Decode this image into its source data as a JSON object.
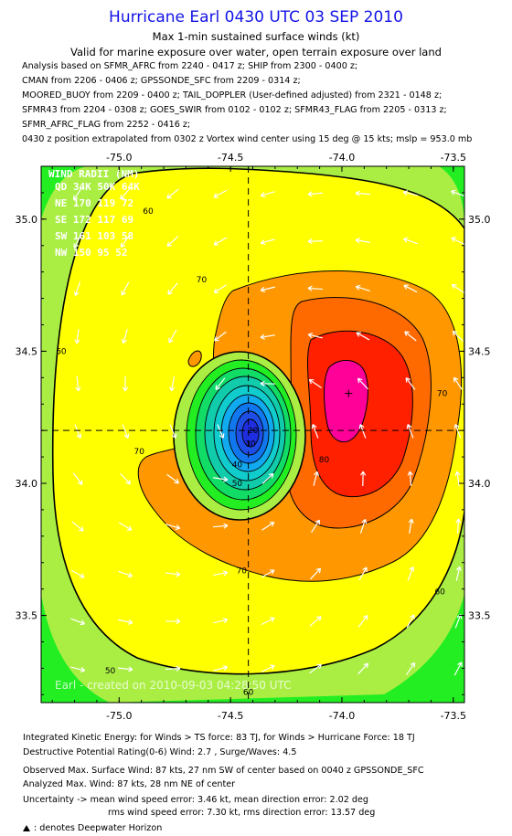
{
  "header": {
    "title": "Hurricane Earl 0430 UTC 03 SEP 2010",
    "subtitle1": "Max 1-min sustained surface winds (kt)",
    "subtitle2": "Valid for marine exposure over water, open terrain exposure over land"
  },
  "analysis_lines": [
    "Analysis based on SFMR_AFRC from 2240 - 0417 z; SHIP from 2300 - 0400 z;",
    "CMAN from 2206 - 0406 z; GPSSONDE_SFC from 2209 - 0314 z;",
    "MOORED_BUOY from 2209 - 0400 z; TAIL_DOPPLER (User-defined adjusted) from 2321 - 0148 z;",
    "SFMR43 from 2204 - 0308 z; GOES_SWIR from 0102 - 0102 z; SFMR43_FLAG from 2205 - 0313 z;",
    "SFMR_AFRC_FLAG from 2252 - 0416 z;",
    "0430 z position extrapolated from 0302 z Vortex wind center using 15 deg @ 15 kts; mslp = 953.0 mb"
  ],
  "chart_data": {
    "type": "contour",
    "title": "Hurricane Earl 0430 UTC 03 SEP 2010",
    "xlim": [
      -75.35,
      -73.45
    ],
    "ylim": [
      33.17,
      35.2
    ],
    "x_ticks": [
      "-75.0",
      "-74.5",
      "-74.0",
      "-73.5"
    ],
    "y_ticks": [
      "35.0",
      "34.5",
      "34.0",
      "33.5"
    ],
    "x_tick_values": [
      -75.0,
      -74.5,
      -74.0,
      -73.5
    ],
    "y_tick_values": [
      35.0,
      34.5,
      34.0,
      33.5
    ],
    "storm_center": {
      "lon": -74.42,
      "lat": 34.2
    },
    "max_wind_marker": {
      "lon": -73.97,
      "lat": 34.34
    },
    "contour_labels": [
      {
        "text": "60",
        "lon": -74.87,
        "lat": 35.02
      },
      {
        "text": "60",
        "lon": -75.26,
        "lat": 34.49
      },
      {
        "text": "70",
        "lon": -74.63,
        "lat": 34.76
      },
      {
        "text": "70",
        "lon": -74.91,
        "lat": 34.11
      },
      {
        "text": "70",
        "lon": -74.45,
        "lat": 33.66
      },
      {
        "text": "70",
        "lon": -73.55,
        "lat": 34.33
      },
      {
        "text": "60",
        "lon": -73.56,
        "lat": 33.58
      },
      {
        "text": "60",
        "lon": -74.42,
        "lat": 33.2
      },
      {
        "text": "50",
        "lon": -75.04,
        "lat": 33.28
      },
      {
        "text": "80",
        "lon": -74.08,
        "lat": 34.08
      },
      {
        "text": "50",
        "lon": -74.47,
        "lat": 33.99
      },
      {
        "text": "40",
        "lon": -74.47,
        "lat": 34.06
      },
      {
        "text": "30",
        "lon": -74.41,
        "lat": 34.14
      },
      {
        "text": "20",
        "lon": -74.4,
        "lat": 34.19
      }
    ],
    "wind_radii": {
      "title": "WIND RADII (NM)",
      "header": "QD 34K 50K 64K",
      "rows": [
        "NE 170 119  72",
        "SE 172 117  69",
        "SW 161 103  58",
        "NW 150  95  52"
      ]
    },
    "watermark": "Earl - created on 2010-09-03 04:28:50 UTC",
    "levels": [
      10,
      20,
      30,
      40,
      50,
      60,
      70,
      80,
      90
    ],
    "colors": {
      "bright_green": "#22ee22",
      "light_green": "#aaee44",
      "yellow": "#ffff00",
      "orange": "#ff9800",
      "dark_orange": "#ff6a00",
      "red": "#ff2000",
      "magenta": "#ff0099",
      "eye_blue": "#1e2ee0"
    }
  },
  "footer": {
    "ike": "Integrated Kinetic Energy:  for Winds > TS force: 83 TJ,  for Winds > Hurricane Force: 18 TJ",
    "dpr": "Destructive Potential Rating(0-6)   Wind: 2.7 , Surge/Waves: 4.5",
    "observed": "Observed Max. Surface Wind: 87 kts, 27 nm SW of center based on 0040 z GPSSONDE_SFC",
    "analyzed": "Analyzed Max. Wind: 87 kts, 28 nm NE of center",
    "uncertainty1": "Uncertainty -> mean wind speed error: 3.46 kt,   mean direction error: 2.02 deg",
    "uncertainty2": "rms wind speed error: 7.30 kt,   rms direction error: 13.57 deg",
    "legend": ": denotes Deepwater Horizon"
  }
}
